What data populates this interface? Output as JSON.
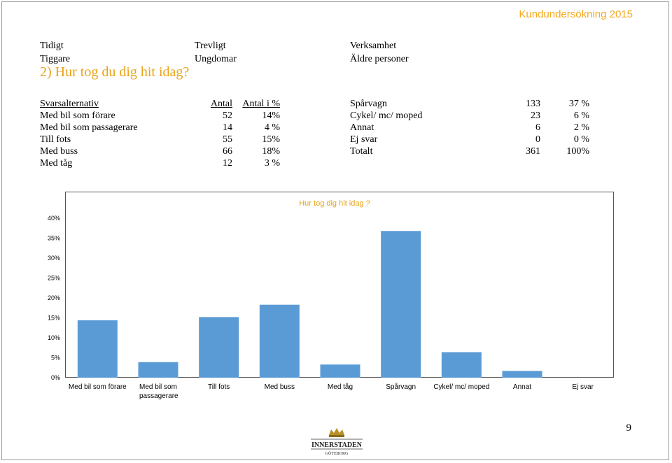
{
  "header": {
    "survey_title": "Kundundersökning 2015"
  },
  "meta": {
    "col1": [
      "Tidigt",
      "Tiggare"
    ],
    "col2": [
      "Trevligt",
      "Ungdomar"
    ],
    "col3": [
      "Verksamhet",
      "Äldre personer"
    ]
  },
  "question": "2) Hur tog du dig hit idag?",
  "table_left": {
    "headers": [
      "Svarsalternativ",
      "Antal",
      "Antal i %"
    ],
    "rows": [
      [
        "Med bil som förare",
        "52",
        "14%"
      ],
      [
        "Med bil som passagerare",
        "14",
        "4 %"
      ],
      [
        "Till fots",
        "55",
        "15%"
      ],
      [
        "Med buss",
        "66",
        "18%"
      ],
      [
        "Med tåg",
        "12",
        "3 %"
      ]
    ]
  },
  "table_right": {
    "rows": [
      [
        "Spårvagn",
        "133",
        "37 %"
      ],
      [
        "Cykel/ mc/ moped",
        "23",
        "6 %"
      ],
      [
        "Annat",
        "6",
        "2 %"
      ],
      [
        "Ej svar",
        "0",
        "0 %"
      ],
      [
        "Totalt",
        "361",
        "100%"
      ]
    ]
  },
  "chart_data": {
    "type": "bar",
    "title": "Hur tog dig hit idag ?",
    "categories": [
      "Med bil som förare",
      "Med bil som passagerare",
      "Till fots",
      "Med buss",
      "Med tåg",
      "Spårvagn",
      "Cykel/ mc/ moped",
      "Annat",
      "Ej svar"
    ],
    "category_lines": [
      [
        "Med bil som förare"
      ],
      [
        "Med bil som",
        "passagerare"
      ],
      [
        "Till fots"
      ],
      [
        "Med buss"
      ],
      [
        "Med tåg"
      ],
      [
        "Spårvagn"
      ],
      [
        "Cykel/ mc/ moped"
      ],
      [
        "Annat"
      ],
      [
        "Ej svar"
      ]
    ],
    "values": [
      14.4,
      3.9,
      15.2,
      18.3,
      3.3,
      36.8,
      6.4,
      1.7,
      0
    ],
    "ylim": [
      0,
      40
    ],
    "yticks": [
      "0%",
      "5%",
      "10%",
      "15%",
      "20%",
      "25%",
      "30%",
      "35%",
      "40%"
    ],
    "bar_color": "#5b9bd5",
    "grid": false,
    "legend": "none"
  },
  "footer": {
    "page_number": "9",
    "logo_text": "INNERSTADEN",
    "logo_subtext": "GÖTEBORG"
  },
  "colors": {
    "accent": "#e8a317",
    "header": "#f5a81c",
    "bar": "#5b9bd5"
  }
}
